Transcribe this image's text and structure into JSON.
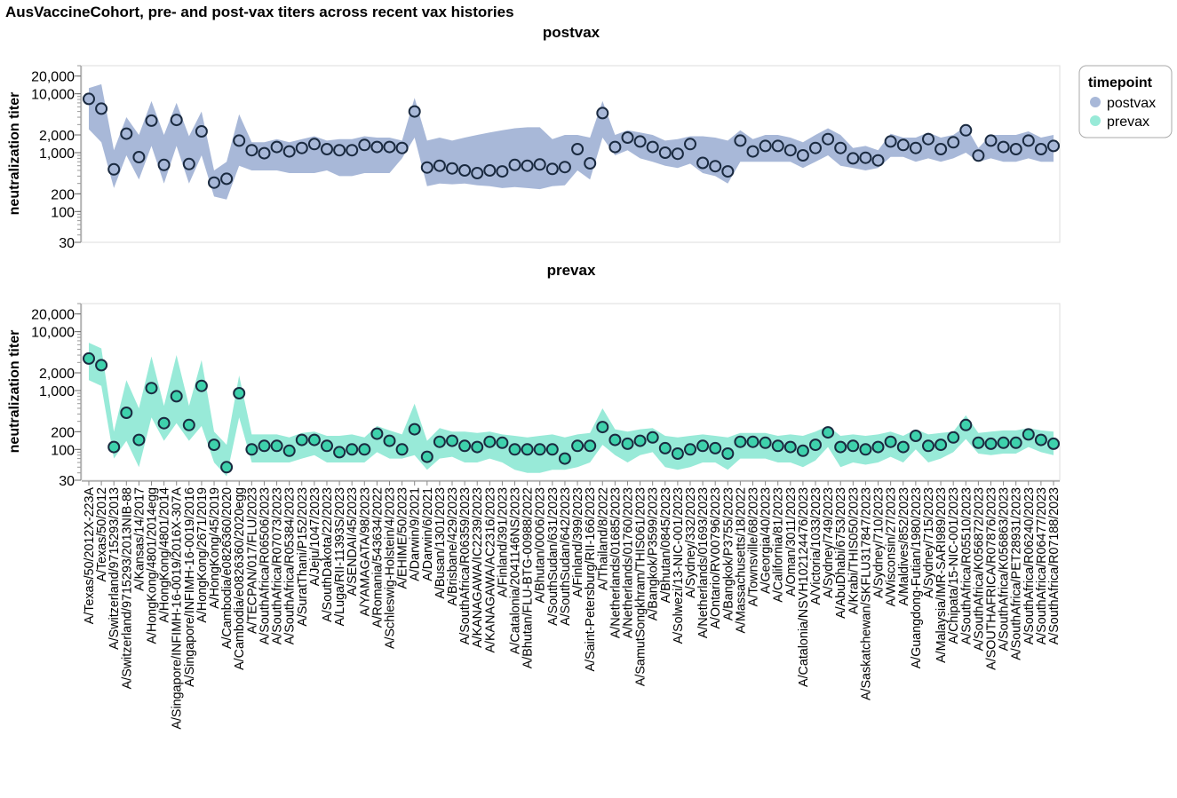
{
  "chart_data": {
    "type": "line",
    "title": "AusVaccineCohort, pre- and post-vax titers across recent vax histories",
    "yscale": "log",
    "ylabel": "neutralization titer",
    "yticks": [
      30,
      100,
      200,
      1000,
      2000,
      10000,
      20000
    ],
    "ytick_labels": [
      "30",
      "100",
      "200",
      "1,000",
      "2,000",
      "10,000",
      "20,000"
    ],
    "ylim": [
      30,
      30000
    ],
    "grid": false,
    "legend": {
      "title": "timepoint",
      "placement": "top-right",
      "entries": [
        {
          "label": "postvax",
          "color": "#a8b8d8"
        },
        {
          "label": "prevax",
          "color": "#98ead8"
        }
      ]
    },
    "colors": {
      "postvax_band": "#a8b8d8",
      "postvax_point": "#a8b8d8",
      "prevax_band": "#98ead8",
      "prevax_point": "#3ed1ac",
      "point_stroke": "#1a2a40"
    },
    "categories": [
      "A/Texas/50/2012X-223A",
      "A/Texas/50/2012",
      "A/Switzerland/9715293/2013",
      "A/Switzerland/9715293/2013NIB-88",
      "A/Kansas/14/2017",
      "A/HongKong/4801/2014egg",
      "A/HongKong/4801/2014",
      "A/Singapore/INFIMH-16-0019/2016X-307A",
      "A/Singapore/INFIMH-16-0019/2016",
      "A/HongKong/2671/2019",
      "A/HongKong/45/2019",
      "A/Cambodia/e0826360/2020",
      "A/Cambodia/e0826360/2020egg",
      "A/TECPAN/017/FLU/2023",
      "A/SouthAfrica/R06506/2023",
      "A/SouthAfrica/R07073/2023",
      "A/SouthAfrica/R05384/2023",
      "A/SuratThani/P152/2023",
      "A/Jeju/1047/2023",
      "A/SouthDakota/22/2023",
      "A/Luga/RII-11393S/2023",
      "A/SENDAI/45/2023",
      "A/YAMAGATA/98/2023",
      "A/Romania/543634/2022",
      "A/Schleswig-Holstein/4/2023",
      "A/EHIME/50/2023",
      "A/Darwin/9/2021",
      "A/Darwin/6/2021",
      "A/Busan/1301/2023",
      "A/Brisbane/429/2023",
      "A/SouthAfrica/R06359/2023",
      "A/KANAGAWA/IC2239/2023",
      "A/KANAGAWA/AC2316/2023",
      "A/Finland/391/2023",
      "A/Catalonia/2041146NS/2023",
      "A/Bhutan/FLU-BTG-00988/2022",
      "A/Bhutan/0006/2023",
      "A/SouthSudan/631/2023",
      "A/SouthSudan/642/2023",
      "A/Finland/399/2023",
      "A/Saint-Petersburg/RII-166/2023",
      "A/Thailand/8/2022",
      "A/Netherlands/01685/2023",
      "A/Netherlands/01760/2023",
      "A/SamutSongkhram/THIS061/2023",
      "A/Bangkok/P3599/2023",
      "A/Bhutan/0845/2023",
      "A/Solwezi/13-NIC-001/2023",
      "A/Sydney/332/2023",
      "A/Netherlands/01693/2023",
      "A/Ontario/RV00796/2023",
      "A/Bangkok/P3755/2023",
      "A/Massachusetts/18/2022",
      "A/Townsville/68/2023",
      "A/Georgia/40/2023",
      "A/California/81/2023",
      "A/Oman/3011/2023",
      "A/Catalonia/NSVH102124476/2023",
      "A/Victoria/1033/2023",
      "A/Sydney/749/2023",
      "A/AbuDhabi/6753/2023",
      "A/Krabi/THIS050/2023",
      "A/Saskatchewan/SKFLU317847/2023",
      "A/Sydney/710/2023",
      "A/Wisconsin/27/2023",
      "A/Maldives/852/2023",
      "A/Guangdong-Futian/1980/2023",
      "A/Sydney/715/2023",
      "A/Malaysia/IMR-SARI989/2023",
      "A/Chipata/15-NIC-001/2023",
      "A/SouthAfrica/R05510/2023",
      "A/SouthAfrica/K056872/2023",
      "A/SOUTHAFRICA/R07876/2023",
      "A/SouthAfrica/K056863/2023",
      "A/SouthAfrica/PET28931/2023",
      "A/SouthAfrica/R06240/2023",
      "A/SouthAfrica/R06477/2023",
      "A/SouthAfrica/R07188/2023"
    ],
    "panels": [
      {
        "title": "postvax",
        "series_key": "postvax",
        "values": [
          8200,
          5600,
          520,
          2100,
          840,
          3500,
          620,
          3600,
          640,
          2300,
          310,
          360,
          1600,
          1100,
          980,
          1250,
          1050,
          1200,
          1400,
          1150,
          1100,
          1100,
          1350,
          1250,
          1250,
          1200,
          5000,
          560,
          600,
          540,
          500,
          450,
          500,
          480,
          620,
          600,
          630,
          530,
          570,
          1150,
          660,
          4700,
          1250,
          1800,
          1550,
          1250,
          1000,
          960,
          1400,
          670,
          590,
          480,
          1600,
          1050,
          1300,
          1300,
          1100,
          900,
          1200,
          1700,
          1200,
          800,
          820,
          740,
          1550,
          1350,
          1200,
          1700,
          1150,
          1500,
          2400,
          890,
          1600,
          1250,
          1150,
          1600,
          1150,
          1300
        ],
        "lower": [
          2500,
          1500,
          250,
          900,
          350,
          1300,
          300,
          1300,
          300,
          900,
          180,
          160,
          600,
          500,
          500,
          500,
          450,
          450,
          450,
          500,
          400,
          400,
          450,
          450,
          450,
          800,
          1800,
          270,
          300,
          290,
          300,
          280,
          270,
          250,
          260,
          250,
          240,
          270,
          280,
          500,
          350,
          1800,
          900,
          1100,
          800,
          700,
          600,
          550,
          650,
          450,
          400,
          300,
          700,
          700,
          700,
          700,
          700,
          550,
          700,
          900,
          600,
          550,
          500,
          550,
          850,
          850,
          700,
          800,
          700,
          800,
          1000,
          700,
          800,
          700,
          700,
          800,
          700,
          700
        ],
        "upper": [
          12500,
          14500,
          1100,
          4000,
          2000,
          7500,
          2000,
          7000,
          1900,
          5000,
          500,
          700,
          4500,
          1500,
          1500,
          1700,
          1500,
          1700,
          1900,
          1600,
          1700,
          1700,
          1900,
          1800,
          1800,
          1600,
          8500,
          1600,
          1800,
          1600,
          1800,
          2000,
          2200,
          2400,
          2600,
          2700,
          2700,
          1700,
          2000,
          2000,
          1800,
          7500,
          2000,
          2400,
          2200,
          2000,
          1600,
          1700,
          1900,
          1900,
          1800,
          1600,
          2400,
          1700,
          2000,
          2000,
          1800,
          1500,
          2000,
          2600,
          2000,
          1200,
          1300,
          1100,
          2100,
          1800,
          1800,
          2200,
          1800,
          2000,
          2800,
          1200,
          2000,
          2000,
          2000,
          2300,
          1800,
          2000
        ]
      },
      {
        "title": "prevax",
        "series_key": "prevax",
        "values": [
          3500,
          2700,
          110,
          420,
          145,
          1100,
          280,
          800,
          260,
          1200,
          120,
          50,
          900,
          100,
          115,
          115,
          95,
          145,
          145,
          115,
          90,
          100,
          100,
          185,
          140,
          100,
          220,
          75,
          135,
          140,
          115,
          110,
          135,
          130,
          100,
          100,
          100,
          100,
          70,
          115,
          115,
          240,
          145,
          125,
          140,
          160,
          105,
          85,
          100,
          115,
          105,
          85,
          135,
          135,
          130,
          115,
          110,
          95,
          120,
          195,
          110,
          115,
          100,
          110,
          135,
          110,
          170,
          115,
          120,
          160,
          260,
          130,
          125,
          130,
          130,
          180,
          145,
          125
        ],
        "lower": [
          1500,
          1200,
          70,
          140,
          50,
          350,
          140,
          280,
          140,
          250,
          60,
          35,
          350,
          60,
          60,
          60,
          60,
          70,
          80,
          60,
          60,
          60,
          60,
          90,
          70,
          70,
          80,
          45,
          70,
          75,
          60,
          60,
          70,
          60,
          45,
          40,
          40,
          45,
          45,
          50,
          60,
          120,
          80,
          60,
          80,
          90,
          50,
          45,
          50,
          60,
          60,
          45,
          70,
          70,
          70,
          60,
          60,
          50,
          65,
          110,
          50,
          60,
          55,
          60,
          75,
          60,
          100,
          60,
          70,
          90,
          150,
          85,
          80,
          85,
          85,
          110,
          90,
          80
        ],
        "upper": [
          6500,
          5200,
          200,
          1500,
          500,
          3800,
          550,
          4000,
          550,
          3300,
          200,
          120,
          1800,
          180,
          180,
          180,
          160,
          190,
          200,
          170,
          170,
          180,
          160,
          250,
          210,
          180,
          600,
          140,
          230,
          200,
          200,
          190,
          200,
          180,
          170,
          160,
          170,
          180,
          160,
          180,
          190,
          500,
          220,
          200,
          220,
          230,
          170,
          160,
          170,
          180,
          170,
          160,
          190,
          190,
          190,
          170,
          180,
          170,
          200,
          250,
          170,
          180,
          170,
          180,
          200,
          170,
          220,
          180,
          190,
          200,
          380,
          190,
          200,
          210,
          210,
          230,
          210,
          200
        ]
      }
    ]
  }
}
